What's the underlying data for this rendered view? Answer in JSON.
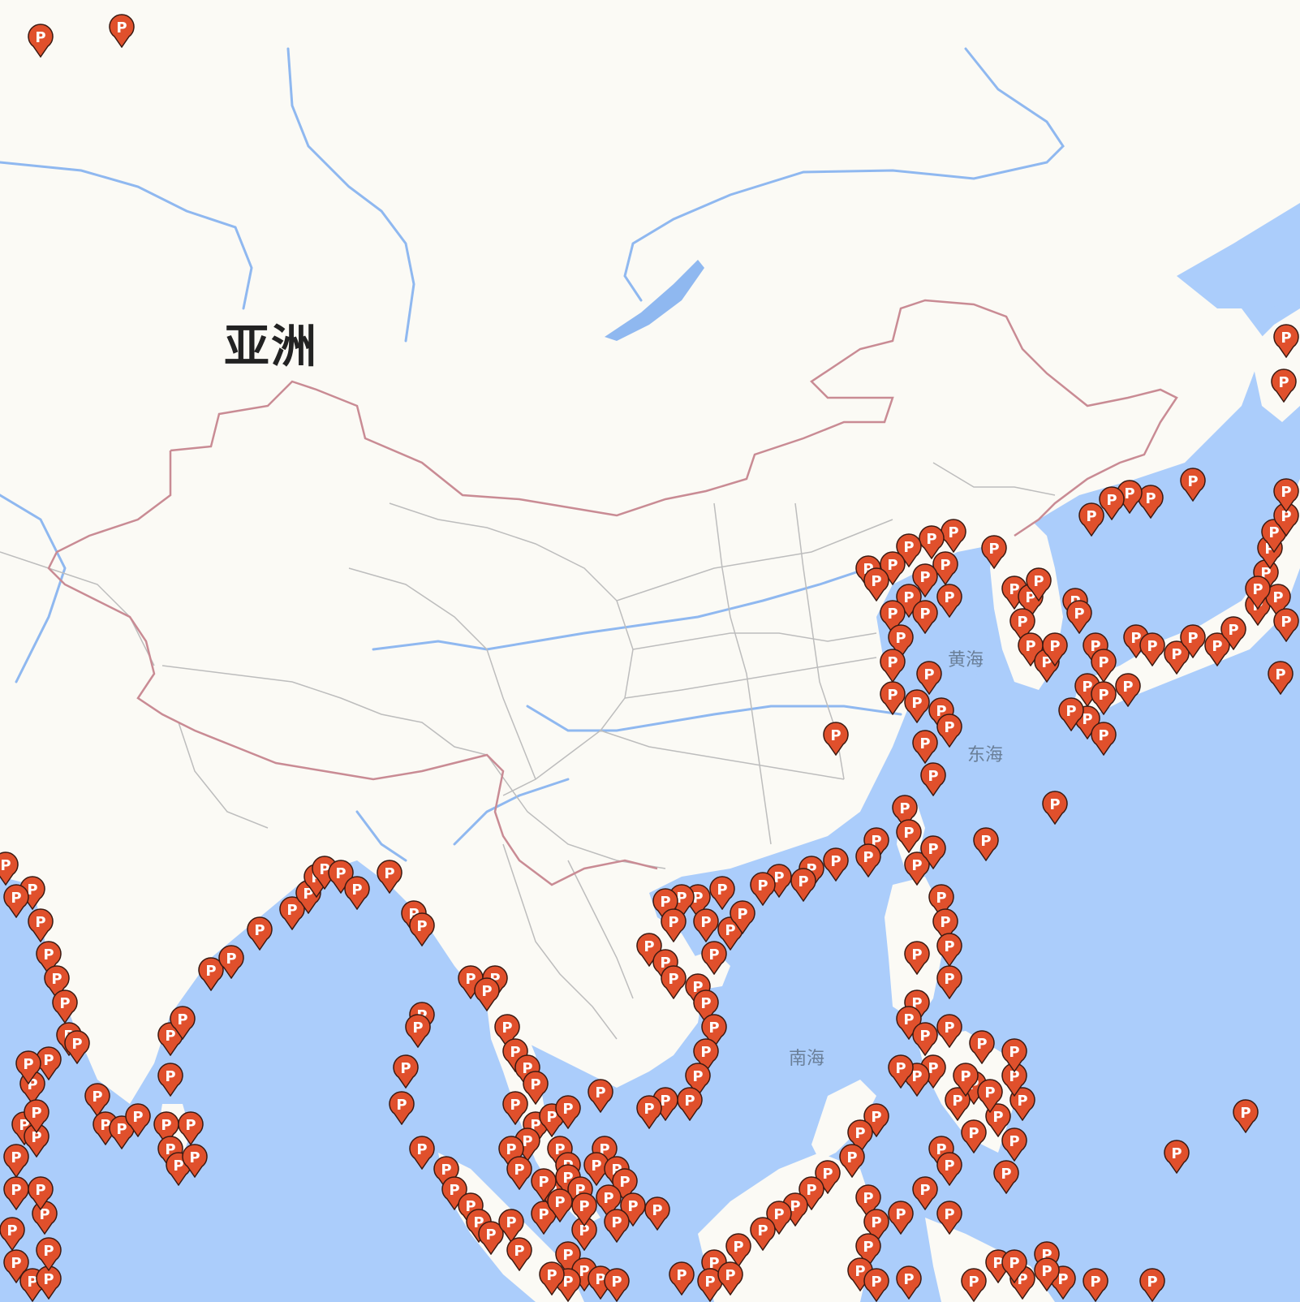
{
  "map": {
    "continent_label": "亚洲",
    "sea_labels": {
      "yellow_sea": "黄海",
      "east_sea": "东海",
      "south_sea": "南海"
    },
    "marker_letter": "P",
    "colors": {
      "land": "#fbfaf5",
      "water": "#abcdfb",
      "river": "#8fb8f0",
      "national_border": "#c98b94",
      "province_border": "#bdbdbd",
      "marker_fill": "#e0502c",
      "marker_stroke": "#3a1a12"
    }
  }
}
